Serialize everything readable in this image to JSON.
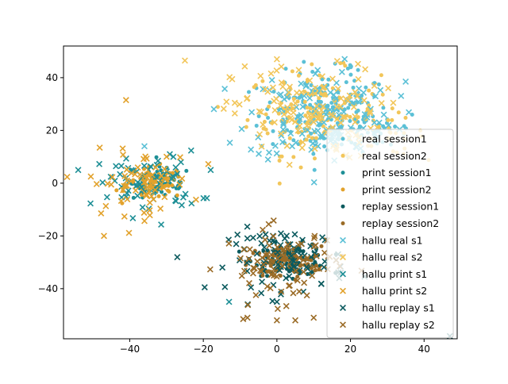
{
  "chart_data": {
    "type": "scatter",
    "title": "",
    "xlabel": "",
    "ylabel": "",
    "xlim": [
      -58,
      49
    ],
    "ylim": [
      -59,
      52
    ],
    "grid": false,
    "legend_position": "right",
    "x_ticks": [
      -40,
      -20,
      0,
      20,
      40
    ],
    "y_ticks": [
      -40,
      -20,
      0,
      20,
      40
    ],
    "x_tick_labels": [
      "−40",
      "−20",
      "0",
      "20",
      "40"
    ],
    "y_tick_labels": [
      "−40",
      "−20",
      "0",
      "20",
      "40"
    ],
    "series": [
      {
        "name": "real session1",
        "marker": "dot",
        "color": "#5bc0d6",
        "clusters": [
          {
            "cx": 13,
            "cy": 26,
            "sx": 9,
            "sy": 8,
            "n": 140
          },
          {
            "cx": 28,
            "cy": 20,
            "sx": 6,
            "sy": 4,
            "n": 30
          },
          {
            "cx": 20,
            "cy": 43,
            "sx": 1.2,
            "sy": 2,
            "n": 8
          }
        ]
      },
      {
        "name": "real session2",
        "marker": "dot",
        "color": "#f2c65a",
        "clusters": [
          {
            "cx": 10,
            "cy": 27,
            "sx": 9,
            "sy": 8,
            "n": 120
          },
          {
            "cx": 30,
            "cy": 19,
            "sx": 5,
            "sy": 4,
            "n": 20
          }
        ]
      },
      {
        "name": "print session1",
        "marker": "dot",
        "color": "#1e8f96",
        "clusters": [
          {
            "cx": -31,
            "cy": 0,
            "sx": 4,
            "sy": 3,
            "n": 70
          }
        ]
      },
      {
        "name": "print session2",
        "marker": "dot",
        "color": "#e2a22c",
        "clusters": [
          {
            "cx": -33,
            "cy": 0,
            "sx": 4,
            "sy": 3,
            "n": 60
          }
        ]
      },
      {
        "name": "replay session1",
        "marker": "dot",
        "color": "#0b5a5e",
        "clusters": [
          {
            "cx": 4,
            "cy": -29,
            "sx": 5,
            "sy": 3,
            "n": 90
          }
        ]
      },
      {
        "name": "replay session2",
        "marker": "dot",
        "color": "#9a6b26",
        "clusters": [
          {
            "cx": 2,
            "cy": -30,
            "sx": 5,
            "sy": 3,
            "n": 80
          }
        ]
      },
      {
        "name": "hallu real s1",
        "marker": "x",
        "color": "#5bc0d6",
        "clusters": [
          {
            "cx": 12,
            "cy": 26,
            "sx": 10,
            "sy": 9,
            "n": 140
          }
        ],
        "extra": [
          [
            35,
            38.5
          ],
          [
            -36,
            14
          ]
        ]
      },
      {
        "name": "hallu real s2",
        "marker": "x",
        "color": "#f2c65a",
        "clusters": [
          {
            "cx": 8,
            "cy": 27,
            "sx": 10,
            "sy": 9,
            "n": 120
          }
        ],
        "extra": [
          [
            -25,
            46.5
          ],
          [
            0,
            47
          ]
        ]
      },
      {
        "name": "hallu print s1",
        "marker": "x",
        "color": "#1e8f96",
        "clusters": [
          {
            "cx": -35,
            "cy": 0,
            "sx": 7,
            "sy": 6,
            "n": 70
          }
        ],
        "extra": [
          [
            -54,
            5
          ],
          [
            -18,
            5
          ],
          [
            -13,
            -45
          ]
        ]
      },
      {
        "name": "hallu print s2",
        "marker": "x",
        "color": "#e2a22c",
        "clusters": [
          {
            "cx": -37,
            "cy": 0,
            "sx": 7,
            "sy": 6,
            "n": 65
          }
        ],
        "extra": [
          [
            -41,
            31.5
          ],
          [
            -47,
            -20
          ]
        ]
      },
      {
        "name": "hallu replay s1",
        "marker": "x",
        "color": "#0b5a5e",
        "clusters": [
          {
            "cx": 3,
            "cy": -29,
            "sx": 8,
            "sy": 6,
            "n": 90
          }
        ],
        "extra": [
          [
            47,
            -58
          ],
          [
            0,
            -45
          ]
        ]
      },
      {
        "name": "hallu replay s2",
        "marker": "x",
        "color": "#9a6b26",
        "clusters": [
          {
            "cx": 1,
            "cy": -31,
            "sx": 8,
            "sy": 7,
            "n": 80
          }
        ],
        "extra": [
          [
            -8,
            -51
          ],
          [
            0,
            -52
          ],
          [
            5,
            -52
          ],
          [
            10,
            -51
          ]
        ]
      }
    ]
  }
}
